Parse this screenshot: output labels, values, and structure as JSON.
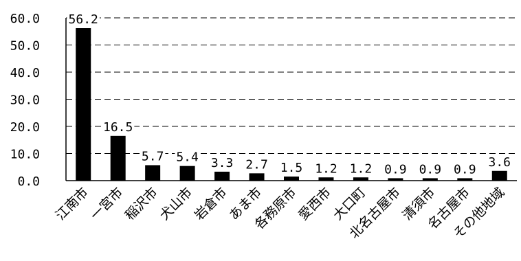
{
  "chart_data": {
    "type": "bar",
    "categories": [
      "江南市",
      "一宮市",
      "稲沢市",
      "犬山市",
      "岩倉市",
      "あま市",
      "各務原市",
      "愛西市",
      "大口町",
      "北名古屋市",
      "清須市",
      "名古屋市",
      "その他地域"
    ],
    "values": [
      56.2,
      16.5,
      5.7,
      5.4,
      3.3,
      2.7,
      1.5,
      1.2,
      1.2,
      0.9,
      0.9,
      0.9,
      3.6
    ],
    "data_labels": [
      "56.2",
      "16.5",
      "5.7",
      "5.4",
      "3.3",
      "2.7",
      "1.5",
      "1.2",
      "1.2",
      "0.9",
      "0.9",
      "0.9",
      "3.6"
    ],
    "yticks": [
      "0.0",
      "10.0",
      "20.0",
      "30.0",
      "40.0",
      "50.0",
      "60.0"
    ],
    "ylim": [
      0,
      60
    ],
    "grid": "dashed horizontal",
    "legend": "none",
    "title": "",
    "xlabel": "",
    "ylabel": "",
    "bar_color": "#000000"
  }
}
